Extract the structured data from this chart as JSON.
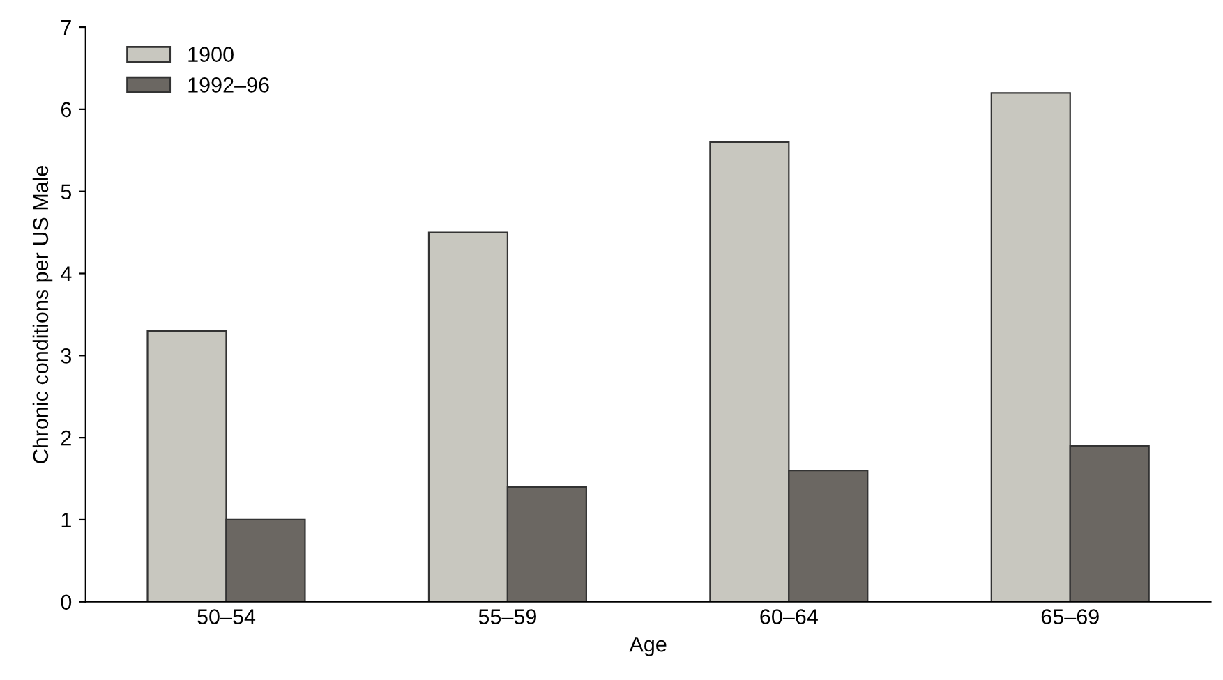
{
  "chart_data": {
    "type": "bar",
    "categories": [
      "50–54",
      "55–59",
      "60–64",
      "65–69"
    ],
    "xlabel": "Age",
    "ylabel": "Chronic conditions per US Male",
    "series": [
      {
        "name": "1900",
        "color": "#c8c7bf",
        "values": [
          3.3,
          4.5,
          5.6,
          6.2
        ]
      },
      {
        "name": "1992–96",
        "color": "#6b6762",
        "values": [
          1.0,
          1.4,
          1.6,
          1.9
        ]
      }
    ],
    "ylim": [
      0,
      7
    ],
    "yticks": [
      0,
      1,
      2,
      3,
      4,
      5,
      6,
      7
    ],
    "legend": "top left",
    "grid": false
  }
}
